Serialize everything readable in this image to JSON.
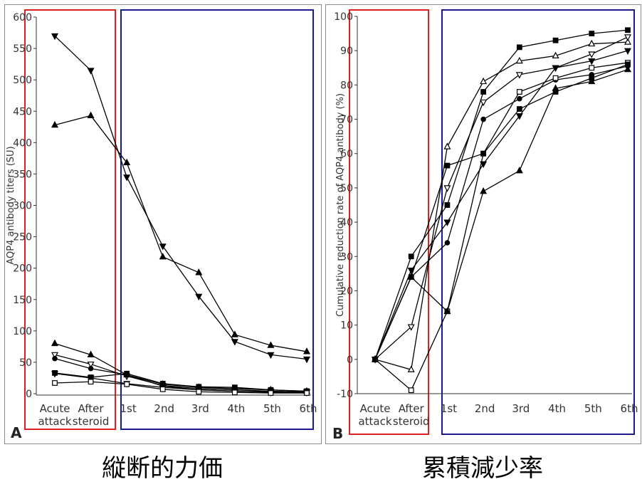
{
  "captions": {
    "left": "縦断的力価",
    "right": "累積減少率"
  },
  "chart_data": [
    {
      "type": "line",
      "panel_label": "A",
      "ylabel": "AQP4 antibody titers (SU)",
      "xlabel": "",
      "ylim": [
        0,
        600
      ],
      "yticks": [
        0,
        50,
        100,
        150,
        200,
        250,
        300,
        350,
        400,
        450,
        500,
        550,
        600
      ],
      "categories": [
        [
          "Acute",
          "attack"
        ],
        [
          "After",
          "steroid"
        ],
        [
          "1st"
        ],
        [
          "2nd"
        ],
        [
          "3rd"
        ],
        [
          "4th"
        ],
        [
          "5th"
        ],
        [
          "6th"
        ]
      ],
      "grid": false,
      "highlight_boxes": [
        {
          "from": 0,
          "to": 1,
          "color": "#e02020"
        },
        {
          "from": 2,
          "to": 7,
          "color": "#1a1a8c"
        }
      ],
      "series": [
        {
          "marker": "triangle-down-filled",
          "values": [
            570,
            515,
            345,
            235,
            155,
            83,
            62,
            55
          ]
        },
        {
          "marker": "triangle-up-filled",
          "values": [
            428,
            443,
            368,
            218,
            193,
            94,
            77,
            67
          ]
        },
        {
          "marker": "triangle-up-filled",
          "values": [
            80,
            62,
            30,
            15,
            10,
            8,
            6,
            4
          ]
        },
        {
          "marker": "triangle-down-open",
          "values": [
            62,
            47,
            28,
            13,
            8,
            6,
            4,
            3
          ]
        },
        {
          "marker": "circle-filled",
          "values": [
            56,
            40,
            30,
            12,
            6,
            4,
            3,
            2
          ]
        },
        {
          "marker": "square-filled",
          "values": [
            33,
            26,
            32,
            16,
            11,
            10,
            6,
            4
          ]
        },
        {
          "marker": "triangle-down-filled",
          "values": [
            32,
            25,
            16,
            10,
            6,
            4,
            2,
            2
          ]
        },
        {
          "marker": "square-open",
          "values": [
            17,
            19,
            15,
            7,
            3,
            2,
            1,
            1
          ]
        }
      ]
    },
    {
      "type": "line",
      "panel_label": "B",
      "ylabel": "Cumulative reduction rate of AQP4 antibody (%)",
      "xlabel": "",
      "ylim": [
        -10,
        100
      ],
      "yticks": [
        -10,
        0,
        10,
        20,
        30,
        40,
        50,
        60,
        70,
        80,
        90,
        100
      ],
      "categories": [
        [
          "Acute",
          "attack"
        ],
        [
          "After",
          "steroid"
        ],
        [
          "1st"
        ],
        [
          "2nd"
        ],
        [
          "3rd"
        ],
        [
          "4th"
        ],
        [
          "5th"
        ],
        [
          "6th"
        ]
      ],
      "grid": false,
      "highlight_boxes": [
        {
          "from": 0,
          "to": 1,
          "color": "#e02020"
        },
        {
          "from": 2,
          "to": 7,
          "color": "#1a1a8c"
        }
      ],
      "series": [
        {
          "marker": "square-filled",
          "values": [
            0,
            30,
            45,
            78,
            91,
            93,
            95,
            96
          ]
        },
        {
          "marker": "triangle-up-open",
          "values": [
            0,
            -3,
            62,
            81,
            87,
            88.5,
            92,
            92.5
          ]
        },
        {
          "marker": "triangle-down-open",
          "values": [
            0,
            9.5,
            50,
            75,
            83,
            85,
            89,
            94
          ]
        },
        {
          "marker": "triangle-down-filled",
          "values": [
            0,
            26,
            40,
            57,
            71,
            85,
            87,
            90
          ]
        },
        {
          "marker": "circle-filled",
          "values": [
            0,
            24,
            34,
            70,
            76,
            81.5,
            83,
            85.5
          ]
        },
        {
          "marker": "square-open",
          "values": [
            0,
            -9,
            14,
            60,
            78,
            82,
            85,
            86.5
          ]
        },
        {
          "marker": "square-filled",
          "values": [
            0,
            24,
            56.5,
            60,
            73,
            78,
            82,
            86
          ]
        },
        {
          "marker": "triangle-up-filled",
          "values": [
            0,
            24,
            14,
            49,
            55,
            79,
            81,
            84.5
          ]
        }
      ]
    }
  ]
}
